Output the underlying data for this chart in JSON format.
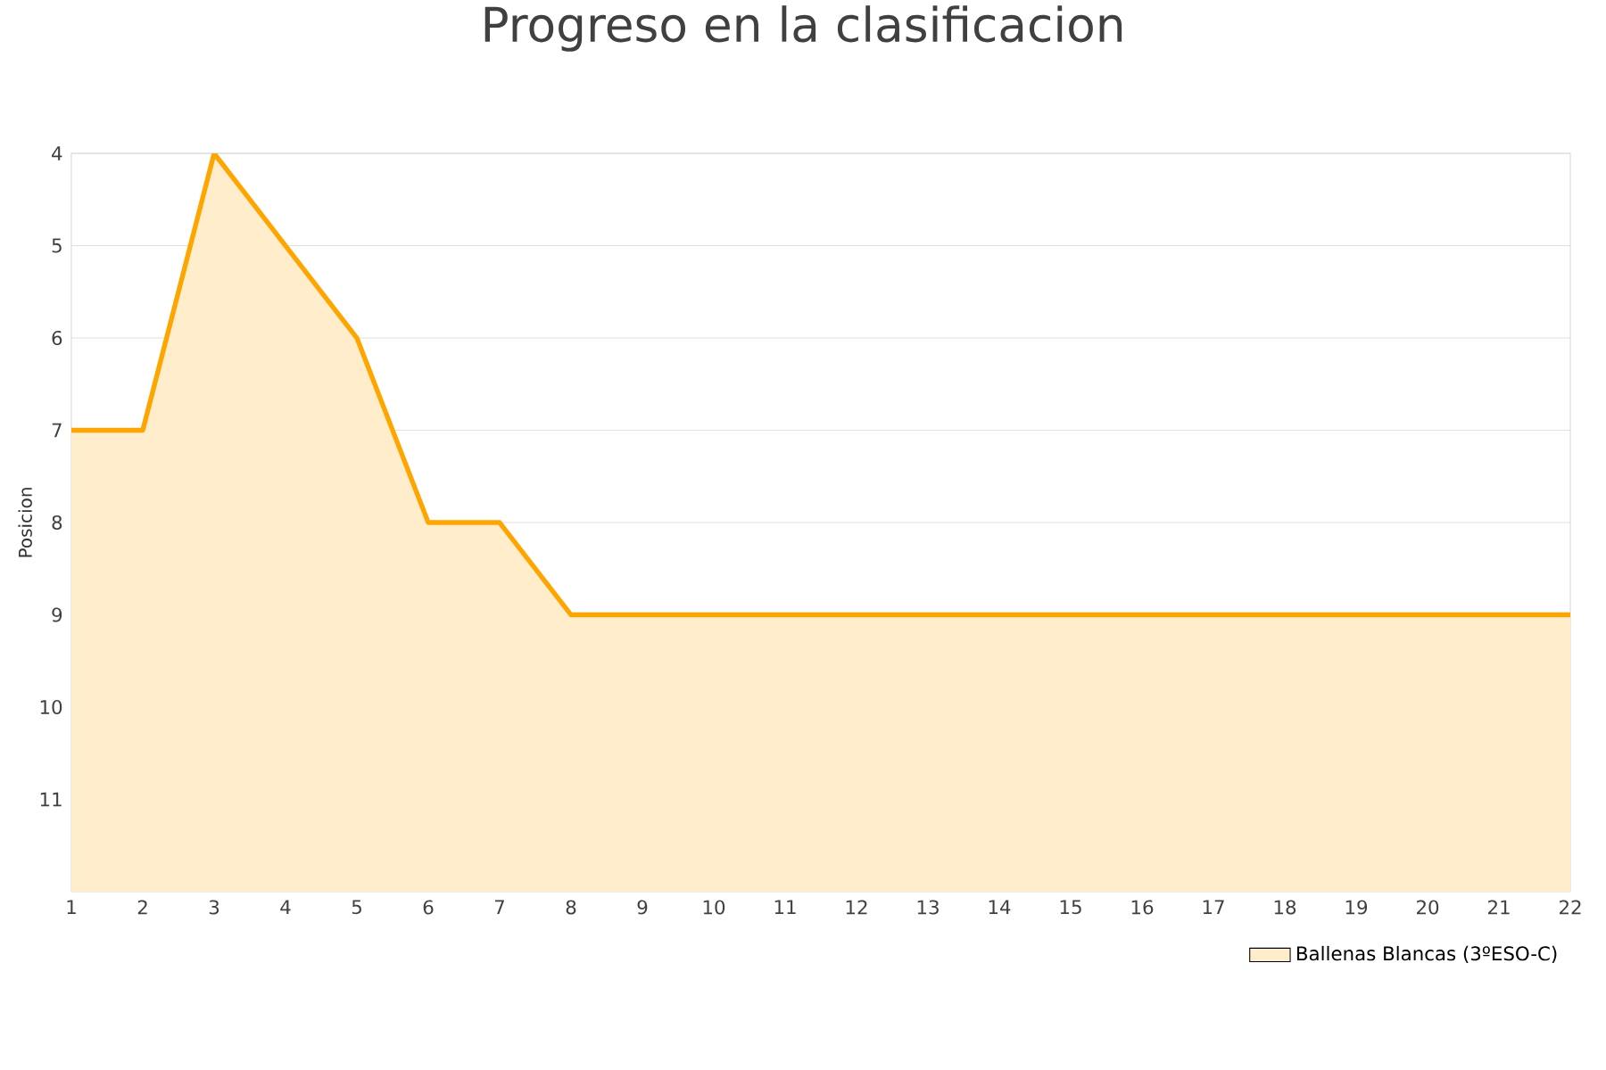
{
  "chart_data": {
    "type": "area",
    "title": "Progreso en la clasificacion",
    "ylabel": "Posicion",
    "x": [
      1,
      2,
      3,
      4,
      5,
      6,
      7,
      8,
      9,
      10,
      11,
      12,
      13,
      14,
      15,
      16,
      17,
      18,
      19,
      20,
      21,
      22
    ],
    "series": [
      {
        "name": "Ballenas Blancas (3ºESO-C)",
        "color": "#ffa500",
        "values": [
          7,
          7,
          4,
          5,
          6,
          8,
          8,
          9,
          9,
          9,
          9,
          9,
          9,
          9,
          9,
          9,
          9,
          9,
          9,
          9,
          9,
          9
        ]
      }
    ],
    "xlim": [
      1,
      22
    ],
    "xticks": [
      1,
      2,
      3,
      4,
      5,
      6,
      7,
      8,
      9,
      10,
      11,
      12,
      13,
      14,
      15,
      16,
      17,
      18,
      19,
      20,
      21,
      22
    ],
    "ylim": [
      12,
      4
    ],
    "yticks": [
      4,
      5,
      6,
      7,
      8,
      9,
      10,
      11
    ],
    "grid": "y",
    "legend": "bottom right",
    "marker": "none"
  }
}
